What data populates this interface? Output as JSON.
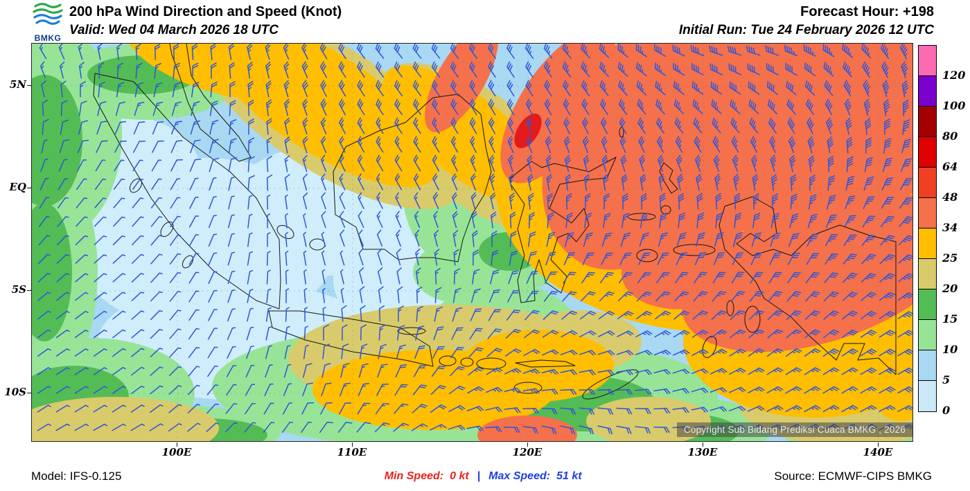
{
  "header": {
    "logo_label": "BMKG",
    "title": "200 hPa Wind Direction and Speed (Knot)",
    "valid_label": "Valid: Wed 04 March 2026 18 UTC",
    "forecast_hour_label": "Forecast Hour: +198",
    "initial_run_label": "Initial Run: Tue 24 February 2026 12 UTC"
  },
  "map": {
    "lat_ticks": [
      "5N",
      "EQ",
      "5S",
      "10S"
    ],
    "lon_ticks": [
      "100E",
      "110E",
      "120E",
      "130E",
      "140E"
    ],
    "copyright": "Copyright Sub Bidang Prediksi Cuaca BMKG , 2026",
    "barb_color": "#2F55D8"
  },
  "legend": {
    "labels": [
      "120",
      "100",
      "80",
      "64",
      "48",
      "34",
      "25",
      "20",
      "15",
      "10",
      "5",
      "0"
    ],
    "colors_top_to_bottom": [
      "#FA6BB1",
      "#7A00CC",
      "#A30000",
      "#E00000",
      "#EF4023",
      "#F4714B",
      "#FFBE00",
      "#D9CB6B",
      "#54BC54",
      "#97E497",
      "#A9D8F2",
      "#CBE8F8"
    ]
  },
  "footer": {
    "model_label": "Model: IFS-0.125",
    "min_label": "Min Speed:",
    "min_value": "0 kt",
    "separator": "|",
    "max_label": "Max Speed:",
    "max_value": "51 kt",
    "source_label": "Source: ECMWF-CIPS BMKG",
    "min_color": "#E8231C",
    "max_color": "#1E3FE0"
  }
}
